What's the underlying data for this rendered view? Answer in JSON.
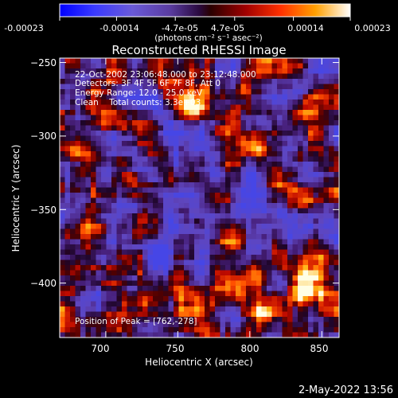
{
  "colorbar": {
    "ticks": [
      "-0.00023",
      "-0.00014",
      "-4.7e-05",
      "4.7e-05",
      "0.00014",
      "0.00023"
    ],
    "tick_values": [
      -0.00023,
      -0.00014,
      -4.7e-05,
      4.7e-05,
      0.00014,
      0.00023
    ],
    "range": [
      -0.00023,
      0.00023
    ],
    "units_label": "(photons cm⁻² s⁻¹ asec⁻²)"
  },
  "chart_data": {
    "type": "heatmap",
    "title": "Reconstructed RHESSI Image",
    "xlabel": "Heliocentric X (arcsec)",
    "ylabel": "Heliocentric Y (arcsec)",
    "xlim": [
      668,
      862
    ],
    "ylim": [
      -437,
      -247
    ],
    "xticks": [
      700,
      750,
      800,
      850
    ],
    "yticks": [
      -250,
      -300,
      -350,
      -400
    ],
    "xtick_labels": [
      "700",
      "750",
      "800",
      "850"
    ],
    "ytick_labels": [
      "−250",
      "−300",
      "−350",
      "−400"
    ],
    "annotations": [
      "22-Oct-2002 23:06:48.000 to 23:12:48.000",
      "Detectors: 3F 4F 5F 6F 7F 8F, Att 0",
      "Energy Range: 12.0 - 25.0 keV",
      "Clean    Total counts: 3.3e+03"
    ],
    "peak_label": "Position of Peak = [762,-278]",
    "peak": [
      762,
      -278
    ]
  },
  "footer": {
    "timestamp": "2-May-2022 13:56"
  }
}
